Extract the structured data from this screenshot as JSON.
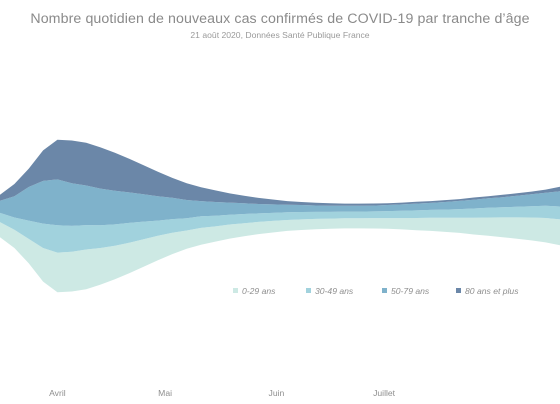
{
  "chart_data": {
    "type": "area",
    "subtype": "streamgraph",
    "title": "Nombre quotidien de nouveaux cas confirmés de COVID-19 par tranche d’âge",
    "subtitle": "21 août 2020, Données Santé Publique France",
    "xlabel": "",
    "ylabel": "",
    "x_tick_labels": [
      "Avril",
      "Mai",
      "Juin",
      "Juillet"
    ],
    "grid": false,
    "legend_position": "right-center",
    "series_order_bottom_to_top": [
      "0-29 ans",
      "30-49 ans",
      "50-79 ans",
      "80 ans et plus"
    ],
    "colors": {
      "0-29 ans": "#cde9e4",
      "30-49 ans": "#a1d2dd",
      "50-79 ans": "#7fb2cb",
      "80 ans et plus": "#6b87a8"
    },
    "x": [
      "2020-03-16",
      "2020-03-20",
      "2020-03-24",
      "2020-03-28",
      "2020-04-01",
      "2020-04-05",
      "2020-04-09",
      "2020-04-13",
      "2020-04-17",
      "2020-04-21",
      "2020-04-25",
      "2020-04-29",
      "2020-05-03",
      "2020-05-07",
      "2020-05-11",
      "2020-05-15",
      "2020-05-19",
      "2020-05-23",
      "2020-05-27",
      "2020-05-31",
      "2020-06-04",
      "2020-06-08",
      "2020-06-12",
      "2020-06-16",
      "2020-06-20",
      "2020-06-24",
      "2020-06-28",
      "2020-07-02",
      "2020-07-06",
      "2020-07-10",
      "2020-07-14",
      "2020-07-18",
      "2020-07-22",
      "2020-07-26",
      "2020-07-30",
      "2020-08-03",
      "2020-08-07",
      "2020-08-11",
      "2020-08-15",
      "2020-08-19"
    ],
    "series": [
      {
        "name": "0-29 ans",
        "values": [
          5.0,
          6.0,
          8.0,
          11.0,
          13.0,
          13.0,
          13.0,
          12.0,
          11.0,
          10.0,
          9.0,
          8.0,
          7.0,
          6.0,
          5.5,
          5.0,
          4.6,
          4.3,
          4.0,
          3.8,
          3.6,
          3.5,
          3.4,
          3.3,
          3.3,
          3.3,
          3.4,
          3.5,
          3.7,
          4.0,
          4.3,
          4.6,
          5.0,
          5.5,
          6.0,
          6.5,
          7.0,
          7.5,
          8.0,
          8.5
        ]
      },
      {
        "name": "30-49 ans",
        "values": [
          3.0,
          4.0,
          6.0,
          8.0,
          9.0,
          8.5,
          8.0,
          7.5,
          7.0,
          6.5,
          5.8,
          5.0,
          4.5,
          4.0,
          3.8,
          3.5,
          3.2,
          3.0,
          2.8,
          2.6,
          2.5,
          2.4,
          2.3,
          2.2,
          2.2,
          2.2,
          2.2,
          2.3,
          2.4,
          2.5,
          2.6,
          2.7,
          2.8,
          3.0,
          3.2,
          3.3,
          3.5,
          3.7,
          4.0,
          4.2
        ]
      },
      {
        "name": "50-79 ans",
        "values": [
          4.0,
          7.0,
          11.0,
          14.0,
          15.0,
          14.0,
          13.0,
          12.0,
          11.0,
          10.0,
          9.0,
          8.0,
          7.0,
          6.0,
          5.0,
          4.5,
          4.0,
          3.5,
          3.1,
          2.8,
          2.5,
          2.3,
          2.1,
          2.0,
          1.9,
          1.9,
          1.9,
          2.0,
          2.1,
          2.2,
          2.3,
          2.5,
          2.7,
          2.9,
          3.1,
          3.3,
          3.6,
          3.9,
          4.3,
          5.0
        ]
      },
      {
        "name": "80 ans et plus",
        "values": [
          2.0,
          4.0,
          6.0,
          10.0,
          13.0,
          14.0,
          14.0,
          13.5,
          12.5,
          11.0,
          9.5,
          8.0,
          6.5,
          5.5,
          4.5,
          3.8,
          3.0,
          2.5,
          2.0,
          1.6,
          1.2,
          1.0,
          0.9,
          0.8,
          0.7,
          0.7,
          0.7,
          0.6,
          0.6,
          0.6,
          0.6,
          0.6,
          0.6,
          0.7,
          0.7,
          0.8,
          0.8,
          0.9,
          1.0,
          1.5
        ]
      }
    ],
    "x_tick_dates": [
      "2020-04-01",
      "2020-05-01",
      "2020-06-01",
      "2020-07-01"
    ]
  }
}
